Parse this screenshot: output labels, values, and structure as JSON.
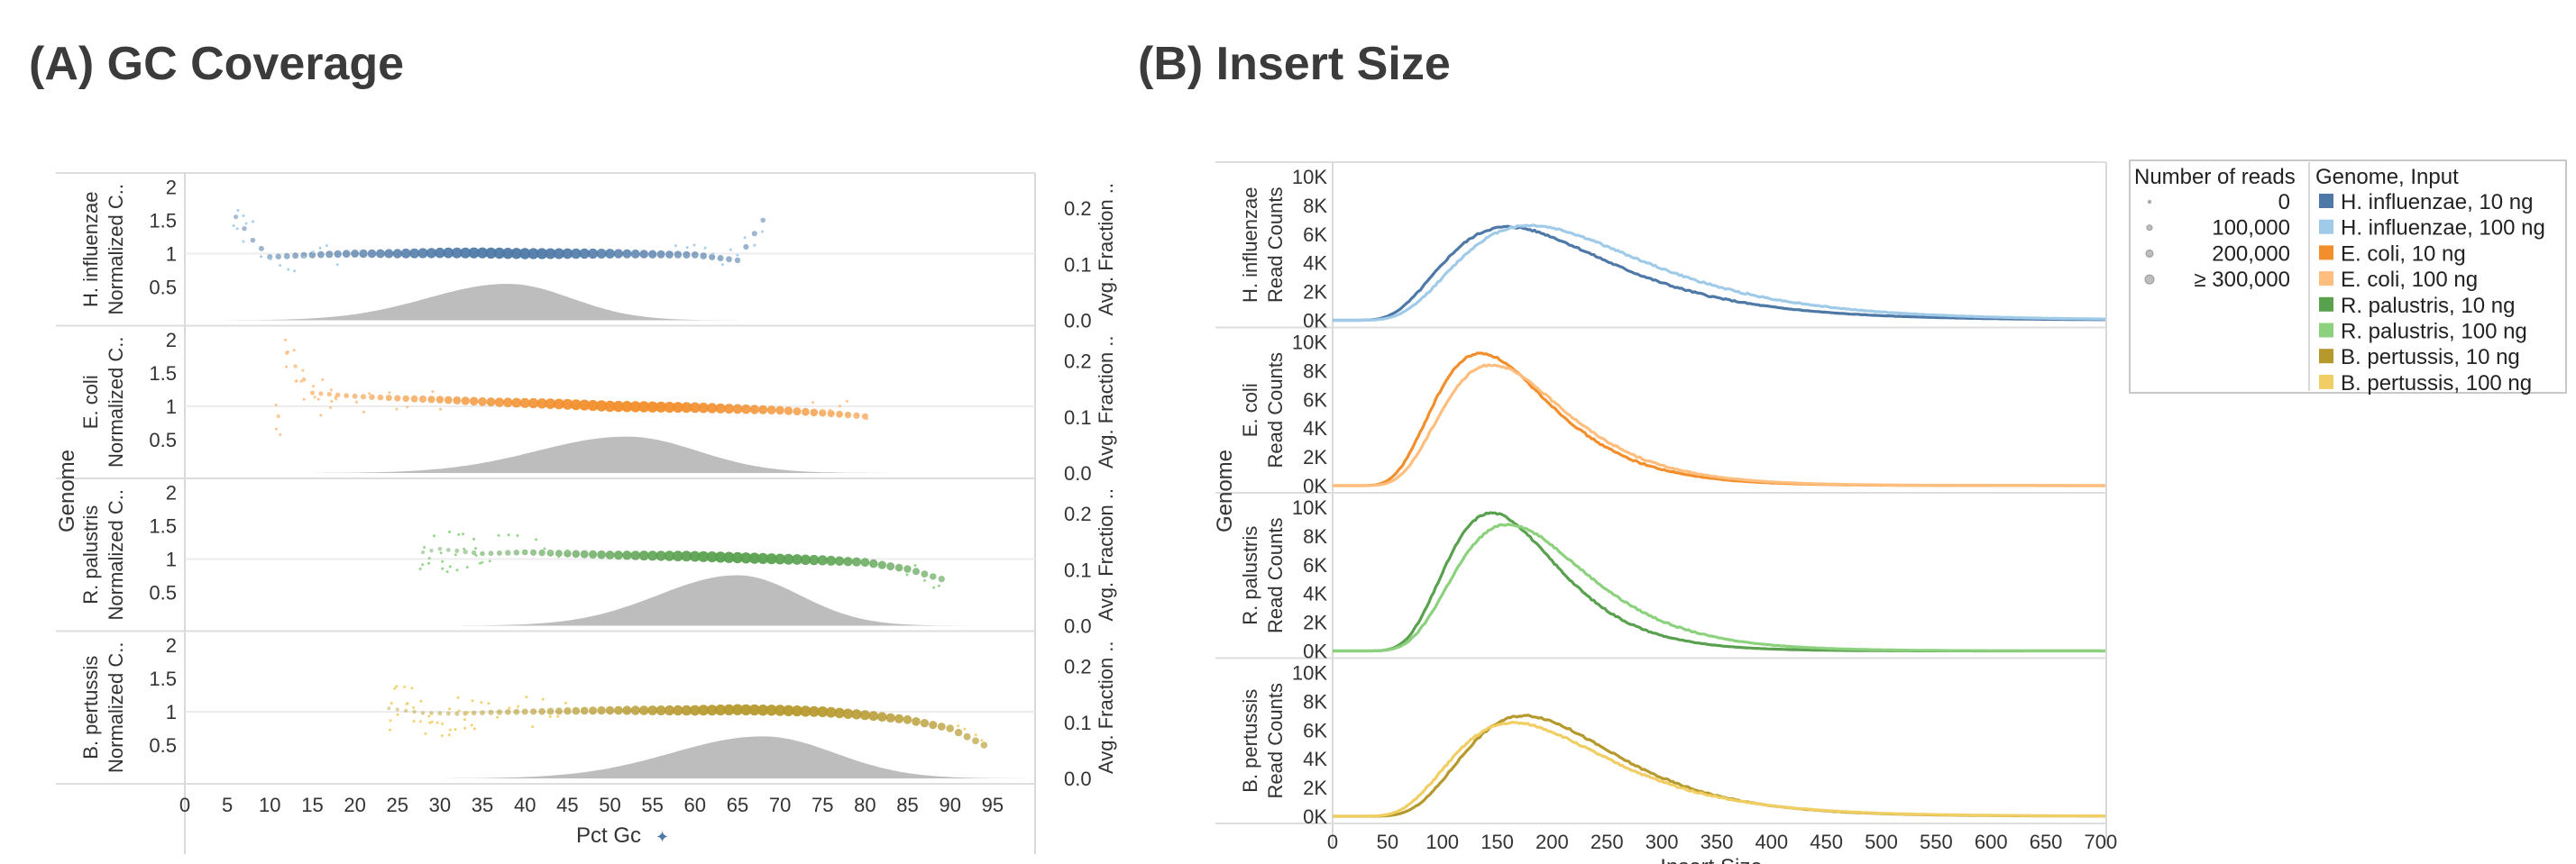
{
  "panel_a": {
    "title": "(A) GC Coverage",
    "x_axis_title": "Pct Gc",
    "y_axis_title": "Genome",
    "left_measure_label": "Normalized C..",
    "right_measure_label": "Avg. Fraction .."
  },
  "panel_b": {
    "title": "(B)  Insert Size",
    "x_axis_title": "Insert Size",
    "y_axis_title": "Genome",
    "measure_label": "Read Counts"
  },
  "legend": {
    "size_title": "Number of reads",
    "size_items": [
      "0",
      "100,000",
      "200,000",
      "≥ 300,000"
    ],
    "color_title": "Genome, Input",
    "color_items": [
      {
        "label": "H. influenzae, 10 ng",
        "color": "#4e79a7"
      },
      {
        "label": "H. influenzae, 100 ng",
        "color": "#a0cbe8"
      },
      {
        "label": "E. coli, 10 ng",
        "color": "#f28e2b"
      },
      {
        "label": "E. coli, 100 ng",
        "color": "#ffbe7d"
      },
      {
        "label": "R. palustris, 10 ng",
        "color": "#59a14f"
      },
      {
        "label": "R. palustris, 100 ng",
        "color": "#8cd17d"
      },
      {
        "label": "B. pertussis, 10 ng",
        "color": "#b6992d"
      },
      {
        "label": "B. pertussis, 100 ng",
        "color": "#f1ce63"
      }
    ]
  },
  "chart_data": [
    {
      "type": "scatter",
      "title": "(A) GC Coverage",
      "xlabel": "Pct Gc",
      "ylabel": "Normalized C..",
      "y2label": "Avg. Fraction ..",
      "xlim": [
        0,
        100
      ],
      "x_ticks": [
        0,
        5,
        10,
        15,
        20,
        25,
        30,
        35,
        40,
        45,
        50,
        55,
        60,
        65,
        70,
        75,
        80,
        85,
        90,
        95
      ],
      "ylim": [
        0,
        2.1
      ],
      "y_ticks": [
        0.5,
        1,
        1.5,
        2
      ],
      "y2lim": [
        0,
        0.25
      ],
      "y2_ticks": [
        0.0,
        0.1,
        0.2
      ],
      "rows": [
        {
          "genome": "H. influenzae",
          "color": "#4e79a7",
          "light": "#a0cbe8",
          "gc_range": [
            6,
            68
          ],
          "gc_mean": 38,
          "coverage": [
            [
              6,
              1.55
            ],
            [
              8,
              1.2
            ],
            [
              10,
              0.95
            ],
            [
              15,
              0.98
            ],
            [
              20,
              1.0
            ],
            [
              25,
              1.0
            ],
            [
              30,
              1.01
            ],
            [
              35,
              1.01
            ],
            [
              40,
              1.0
            ],
            [
              45,
              1.0
            ],
            [
              50,
              1.0
            ],
            [
              55,
              0.99
            ],
            [
              60,
              0.98
            ],
            [
              65,
              0.9
            ],
            [
              68,
              1.5
            ]
          ],
          "fraction_peak": 0.065
        },
        {
          "genome": "E. coli",
          "color": "#f28e2b",
          "light": "#ffbe7d",
          "gc_range": [
            11,
            80
          ],
          "gc_mean": 52,
          "coverage": [
            [
              12,
              1.8
            ],
            [
              15,
              1.2
            ],
            [
              20,
              1.15
            ],
            [
              25,
              1.12
            ],
            [
              30,
              1.1
            ],
            [
              35,
              1.07
            ],
            [
              40,
              1.05
            ],
            [
              45,
              1.03
            ],
            [
              50,
              1.0
            ],
            [
              55,
              0.99
            ],
            [
              60,
              0.98
            ],
            [
              65,
              0.96
            ],
            [
              70,
              0.94
            ],
            [
              75,
              0.9
            ],
            [
              80,
              0.85
            ]
          ],
          "fraction_peak": 0.065
        },
        {
          "genome": "R. palustris",
          "color": "#59a14f",
          "light": "#8cd17d",
          "gc_range": [
            28,
            89
          ],
          "gc_mean": 65,
          "coverage": [
            [
              28,
              1.1
            ],
            [
              30,
              1.15
            ],
            [
              35,
              1.08
            ],
            [
              40,
              1.1
            ],
            [
              45,
              1.08
            ],
            [
              50,
              1.06
            ],
            [
              55,
              1.05
            ],
            [
              60,
              1.04
            ],
            [
              65,
              1.02
            ],
            [
              70,
              1.0
            ],
            [
              75,
              0.98
            ],
            [
              80,
              0.95
            ],
            [
              85,
              0.85
            ],
            [
              89,
              0.7
            ]
          ],
          "fraction_peak": 0.09
        },
        {
          "genome": "B. pertussis",
          "color": "#b6992d",
          "light": "#f1ce63",
          "gc_range": [
            24,
            94
          ],
          "gc_mean": 68,
          "coverage": [
            [
              24,
              1.05
            ],
            [
              28,
              0.98
            ],
            [
              32,
              0.97
            ],
            [
              36,
              0.99
            ],
            [
              40,
              1.0
            ],
            [
              45,
              1.01
            ],
            [
              50,
              1.02
            ],
            [
              55,
              1.02
            ],
            [
              60,
              1.02
            ],
            [
              65,
              1.03
            ],
            [
              70,
              1.02
            ],
            [
              75,
              1.0
            ],
            [
              80,
              0.95
            ],
            [
              85,
              0.88
            ],
            [
              90,
              0.75
            ],
            [
              94,
              0.5
            ]
          ],
          "fraction_peak": 0.075
        }
      ]
    },
    {
      "type": "line",
      "title": "(B)  Insert Size",
      "xlabel": "Insert Size",
      "ylabel": "Read Counts",
      "xlim": [
        0,
        705
      ],
      "x_ticks": [
        0,
        50,
        100,
        150,
        200,
        250,
        300,
        350,
        400,
        450,
        500,
        550,
        600,
        650,
        700
      ],
      "ylim": [
        0,
        10500
      ],
      "y_ticks": [
        "0K",
        "2K",
        "4K",
        "6K",
        "8K",
        "10K"
      ],
      "rows": [
        {
          "genome": "H. influenzae",
          "series": [
            {
              "name": "H. influenzae, 10 ng",
              "color": "#4e79a7",
              "peak_x": 160,
              "peak_y": 6500,
              "width": 125
            },
            {
              "name": "H. influenzae, 100 ng",
              "color": "#a0cbe8",
              "peak_x": 180,
              "peak_y": 6600,
              "width": 140
            }
          ]
        },
        {
          "genome": "E. coli",
          "series": [
            {
              "name": "E. coli, 10 ng",
              "color": "#f28e2b",
              "peak_x": 135,
              "peak_y": 9200,
              "width": 85
            },
            {
              "name": "E. coli, 100 ng",
              "color": "#ffbe7d",
              "peak_x": 145,
              "peak_y": 8400,
              "width": 90
            }
          ]
        },
        {
          "genome": "R. palustris",
          "series": [
            {
              "name": "R. palustris, 10 ng",
              "color": "#59a14f",
              "peak_x": 145,
              "peak_y": 9600,
              "width": 80
            },
            {
              "name": "R. palustris, 100 ng",
              "color": "#8cd17d",
              "peak_x": 160,
              "peak_y": 8800,
              "width": 95
            }
          ]
        },
        {
          "genome": "B. pertussis",
          "series": [
            {
              "name": "B. pertussis, 10 ng",
              "color": "#b6992d",
              "peak_x": 175,
              "peak_y": 7000,
              "width": 110
            },
            {
              "name": "B. pertussis, 100 ng",
              "color": "#f1ce63",
              "peak_x": 165,
              "peak_y": 6500,
              "width": 115
            }
          ]
        }
      ]
    }
  ]
}
